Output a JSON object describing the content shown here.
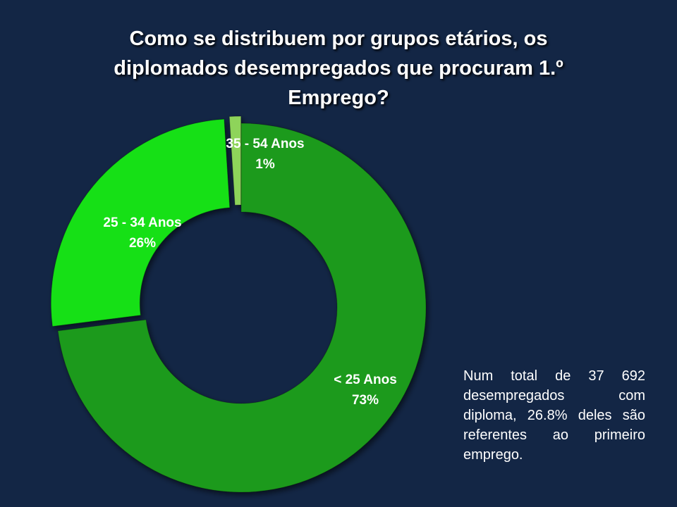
{
  "title_lines": [
    "Como se distribuem por grupos etários, os",
    "diplomados desempregados que procuram  1.º",
    "Emprego?"
  ],
  "note": "Num total de 37 692 desempregados com diploma, 26.8% deles são referentes ao primeiro emprego.",
  "colors": {
    "background": "#132645",
    "under_25": "#1f9a1a",
    "age_25_34": "#14e014",
    "age_35_54": "#8ed45a"
  },
  "chart_data": {
    "type": "pie",
    "variant": "doughnut",
    "title": "Como se distribuem por grupos etários, os diplomados desempregados que procuram  1.º Emprego?",
    "categories": [
      "< 25 Anos",
      "25 - 34 Anos",
      "35 - 54 Anos"
    ],
    "values": [
      73,
      26,
      1
    ],
    "percent_labels": [
      "73%",
      "26%",
      "1%"
    ],
    "legend": "none",
    "data_labels": "category and percent"
  }
}
